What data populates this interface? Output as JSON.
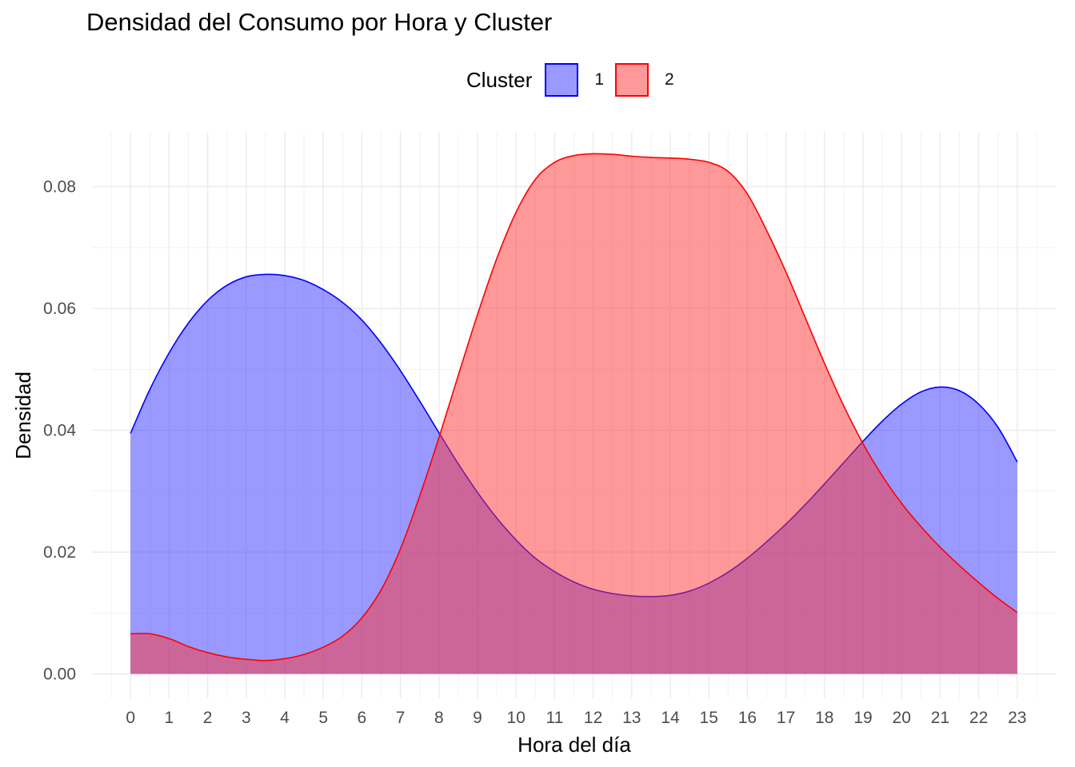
{
  "chart_data": {
    "type": "area",
    "title": "Densidad del Consumo por Hora y Cluster",
    "xlabel": "Hora del día",
    "ylabel": "Densidad",
    "xlim": [
      -1,
      24
    ],
    "ylim": [
      -0.004,
      0.089
    ],
    "x_ticks": [
      0,
      1,
      2,
      3,
      4,
      5,
      6,
      7,
      8,
      9,
      10,
      11,
      12,
      13,
      14,
      15,
      16,
      17,
      18,
      19,
      20,
      21,
      22,
      23
    ],
    "y_ticks": [
      0.0,
      0.02,
      0.04,
      0.06,
      0.08
    ],
    "y_tick_labels": [
      "0.00",
      "0.02",
      "0.04",
      "0.06",
      "0.08"
    ],
    "grid": true,
    "legend": {
      "title": "Cluster",
      "position": "top"
    },
    "series": [
      {
        "name": "1",
        "line_color": "#0000ff",
        "fill_color": "#3333ff",
        "fill_opacity": 0.5,
        "x": [
          0,
          0.5,
          1,
          1.5,
          2,
          2.5,
          3,
          3.5,
          4,
          4.5,
          5,
          5.5,
          6,
          6.5,
          7,
          7.5,
          8,
          8.5,
          9,
          9.5,
          10,
          10.5,
          11,
          11.5,
          12,
          12.5,
          13,
          13.5,
          14,
          14.5,
          15,
          15.5,
          16,
          16.5,
          17,
          17.5,
          18,
          18.5,
          19,
          19.5,
          20,
          20.5,
          21,
          21.5,
          22,
          22.5,
          23
        ],
        "values": [
          0.0395,
          0.0467,
          0.0527,
          0.0576,
          0.0613,
          0.0638,
          0.0652,
          0.0656,
          0.0654,
          0.0646,
          0.0631,
          0.061,
          0.0581,
          0.0543,
          0.0498,
          0.0448,
          0.0396,
          0.0345,
          0.0298,
          0.0256,
          0.022,
          0.019,
          0.0168,
          0.0151,
          0.0139,
          0.0132,
          0.0128,
          0.0127,
          0.0129,
          0.0136,
          0.0149,
          0.0167,
          0.019,
          0.0217,
          0.0246,
          0.0278,
          0.0312,
          0.0347,
          0.0382,
          0.0415,
          0.0443,
          0.0463,
          0.0471,
          0.0465,
          0.0443,
          0.0405,
          0.0348
        ]
      },
      {
        "name": "2",
        "line_color": "#ff0000",
        "fill_color": "#ff3333",
        "fill_opacity": 0.5,
        "x": [
          0,
          0.5,
          1,
          1.5,
          2,
          2.5,
          3,
          3.5,
          4,
          4.5,
          5,
          5.5,
          6,
          6.5,
          7,
          7.5,
          8,
          8.5,
          9,
          9.5,
          10,
          10.5,
          11,
          11.5,
          12,
          12.5,
          13,
          13.5,
          14,
          14.5,
          15,
          15.5,
          16,
          16.5,
          17,
          17.5,
          18,
          18.5,
          19,
          19.5,
          20,
          20.5,
          21,
          21.5,
          22,
          22.5,
          23
        ],
        "values": [
          0.0066,
          0.0066,
          0.0058,
          0.0045,
          0.0035,
          0.0028,
          0.0024,
          0.0022,
          0.0025,
          0.0032,
          0.0044,
          0.0062,
          0.0092,
          0.0138,
          0.0205,
          0.0292,
          0.0388,
          0.049,
          0.059,
          0.0682,
          0.0758,
          0.0812,
          0.084,
          0.0851,
          0.0854,
          0.0853,
          0.085,
          0.0848,
          0.0847,
          0.0845,
          0.084,
          0.0825,
          0.0788,
          0.0728,
          0.066,
          0.0585,
          0.051,
          0.044,
          0.0378,
          0.0325,
          0.028,
          0.0242,
          0.0208,
          0.0178,
          0.015,
          0.0124,
          0.0101
        ]
      }
    ]
  }
}
